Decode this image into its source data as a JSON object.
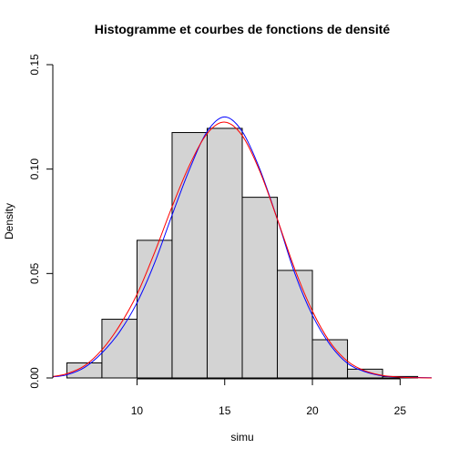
{
  "chart_data": {
    "type": "bar",
    "title": "Histogramme et courbes de fonctions de densité",
    "xlabel": "simu",
    "ylabel": "Density",
    "xlim": [
      5.2,
      26.8
    ],
    "ylim": [
      0,
      0.15
    ],
    "x_ticks": [
      "10",
      "15",
      "20",
      "25"
    ],
    "y_ticks": [
      "0.00",
      "0.05",
      "0.10",
      "0.15"
    ],
    "bins": [
      {
        "x0": 6,
        "x1": 8,
        "density": 0.0072
      },
      {
        "x0": 8,
        "x1": 10,
        "density": 0.0281
      },
      {
        "x0": 10,
        "x1": 12,
        "density": 0.0659
      },
      {
        "x0": 12,
        "x1": 14,
        "density": 0.1175
      },
      {
        "x0": 14,
        "x1": 16,
        "density": 0.1195
      },
      {
        "x0": 16,
        "x1": 18,
        "density": 0.0865
      },
      {
        "x0": 18,
        "x1": 20,
        "density": 0.0515
      },
      {
        "x0": 20,
        "x1": 22,
        "density": 0.0183
      },
      {
        "x0": 22,
        "x1": 24,
        "density": 0.0042
      },
      {
        "x0": 24,
        "x1": 26,
        "density": 0.0007
      }
    ],
    "bar_fill": "#d3d3d3",
    "series": [
      {
        "color": "#0000ff",
        "x": [
          5.2,
          6,
          7,
          8,
          9,
          10,
          11,
          12,
          13,
          14,
          15,
          16,
          17,
          18,
          19,
          20,
          21,
          22,
          23,
          24,
          25,
          26,
          26.8
        ],
        "y": [
          0.0005,
          0.0015,
          0.005,
          0.012,
          0.022,
          0.036,
          0.055,
          0.078,
          0.1,
          0.118,
          0.125,
          0.118,
          0.1,
          0.076,
          0.05,
          0.03,
          0.016,
          0.007,
          0.003,
          0.001,
          0.0004,
          0.0002,
          0.0001
        ]
      },
      {
        "color": "#ff0000",
        "x": [
          5.2,
          6,
          7,
          8,
          9,
          10,
          11,
          12,
          13,
          14,
          15,
          16,
          17,
          18,
          19,
          20,
          21,
          22,
          23,
          24,
          25,
          26,
          26.8
        ],
        "y": [
          0.0007,
          0.002,
          0.0058,
          0.0135,
          0.025,
          0.04,
          0.06,
          0.082,
          0.102,
          0.117,
          0.1225,
          0.116,
          0.099,
          0.076,
          0.052,
          0.032,
          0.0172,
          0.008,
          0.0034,
          0.0012,
          0.0004,
          0.0001,
          0.0
        ]
      }
    ],
    "grid": false,
    "legend": "none"
  }
}
